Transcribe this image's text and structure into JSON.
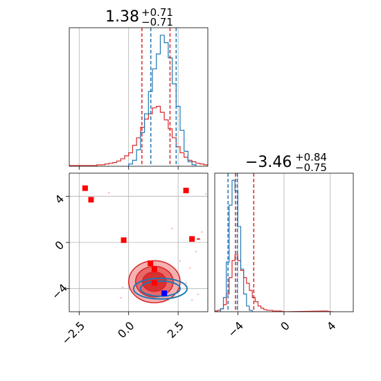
{
  "chart_data": [
    {
      "type": "histogram",
      "panel": "top-left",
      "title": {
        "value": "1.38",
        "sup": "+0.71",
        "sub": "−0.71"
      },
      "xlim": [
        -3.0,
        4.0
      ],
      "grid": true,
      "series": [
        {
          "name": "",
          "color": "#d62728",
          "bins": [
            [
              -3.0,
              1
            ],
            [
              -2.8,
              1
            ],
            [
              -2.6,
              1
            ],
            [
              -2.4,
              1
            ],
            [
              -2.2,
              1
            ],
            [
              -2.0,
              1
            ],
            [
              -1.8,
              1
            ],
            [
              -1.6,
              2
            ],
            [
              -1.4,
              2
            ],
            [
              -1.2,
              3
            ],
            [
              -1.0,
              4
            ],
            [
              -0.8,
              5
            ],
            [
              -0.6,
              7
            ],
            [
              -0.4,
              10
            ],
            [
              -0.2,
              14
            ],
            [
              0.0,
              18
            ],
            [
              0.2,
              28
            ],
            [
              0.4,
              38
            ],
            [
              0.6,
              52
            ],
            [
              0.8,
              63
            ],
            [
              1.0,
              70
            ],
            [
              1.2,
              78
            ],
            [
              1.4,
              80
            ],
            [
              1.6,
              72
            ],
            [
              1.8,
              62
            ],
            [
              2.0,
              50
            ],
            [
              2.2,
              38
            ],
            [
              2.4,
              26
            ],
            [
              2.6,
              18
            ],
            [
              2.8,
              12
            ],
            [
              3.0,
              8
            ],
            [
              3.2,
              6
            ],
            [
              3.4,
              4
            ],
            [
              3.6,
              3
            ],
            [
              3.8,
              2
            ]
          ]
        },
        {
          "name": "",
          "color": "#1f77b4",
          "bins": [
            [
              0.0,
              3
            ],
            [
              0.2,
              8
            ],
            [
              0.4,
              22
            ],
            [
              0.6,
              45
            ],
            [
              0.8,
              70
            ],
            [
              1.0,
              100
            ],
            [
              1.2,
              130
            ],
            [
              1.4,
              150
            ],
            [
              1.6,
              175
            ],
            [
              1.8,
              165
            ],
            [
              2.0,
              145
            ],
            [
              2.2,
              110
            ],
            [
              2.4,
              80
            ],
            [
              2.6,
              48
            ],
            [
              2.8,
              20
            ],
            [
              3.0,
              6
            ],
            [
              3.2,
              2
            ]
          ]
        }
      ],
      "ylim": [
        0,
        185
      ],
      "quantiles": [
        {
          "color": "#d62728",
          "values": [
            0.67,
            2.09
          ]
        },
        {
          "color": "#1f77b4",
          "values": [
            1.12,
            2.4
          ]
        }
      ],
      "xticks": [
        -2.5,
        0.0,
        2.5
      ]
    },
    {
      "type": "contour-scatter",
      "panel": "bottom-left",
      "xlim": [
        -3.0,
        4.0
      ],
      "ylim": [
        -6.0,
        6.0
      ],
      "xticks": [
        -2.5,
        0.0,
        2.5
      ],
      "yticks": [
        -4,
        0,
        4
      ],
      "xtick_labels": [
        "−2.5",
        "0.0",
        "2.5"
      ],
      "ytick_labels": [
        "−4",
        "0",
        "4"
      ],
      "grid": true,
      "red_points": [
        [
          -2.2,
          4.7
        ],
        [
          -1.9,
          3.7
        ],
        [
          -0.25,
          0.2
        ],
        [
          2.9,
          4.5
        ],
        [
          3.2,
          0.3
        ],
        [
          1.1,
          -1.8
        ],
        [
          1.3,
          -2.3
        ],
        [
          1.3,
          -3.5
        ]
      ],
      "blue_points": [
        [
          1.8,
          -4.4
        ]
      ],
      "red_contours": {
        "color": "#d62728",
        "center": [
          1.3,
          -3.4
        ],
        "levels": [
          [
            1.3,
            0.65
          ],
          [
            0.95,
            0.48
          ],
          [
            0.6,
            0.32
          ]
        ]
      },
      "blue_contours": {
        "color": "#1f77b4",
        "center": [
          1.6,
          -4.0
        ],
        "levels": [
          [
            1.35,
            0.3
          ],
          [
            1.0,
            0.22
          ]
        ]
      }
    },
    {
      "type": "histogram",
      "panel": "bottom-right",
      "title": {
        "value": "−3.46",
        "sup": "+0.84",
        "sub": "−0.75"
      },
      "xlim": [
        -6.0,
        6.0
      ],
      "xticks": [
        -4,
        0,
        4
      ],
      "xtick_labels": [
        "−4",
        "0",
        "4"
      ],
      "grid": true,
      "series": [
        {
          "name": "",
          "color": "#d62728",
          "bins": [
            [
              -6.0,
              1
            ],
            [
              -5.75,
              2
            ],
            [
              -5.5,
              4
            ],
            [
              -5.25,
              10
            ],
            [
              -5.0,
              25
            ],
            [
              -4.75,
              48
            ],
            [
              -4.5,
              72
            ],
            [
              -4.25,
              80
            ],
            [
              -4.0,
              72
            ],
            [
              -3.75,
              58
            ],
            [
              -3.5,
              48
            ],
            [
              -3.25,
              40
            ],
            [
              -3.0,
              30
            ],
            [
              -2.75,
              20
            ],
            [
              -2.5,
              14
            ],
            [
              -2.25,
              8
            ],
            [
              -2.0,
              5
            ],
            [
              -1.75,
              3
            ],
            [
              -1.5,
              2
            ],
            [
              -1.25,
              2
            ],
            [
              -1.0,
              1
            ],
            [
              -0.75,
              1
            ],
            [
              -0.5,
              1
            ],
            [
              0.0,
              0
            ],
            [
              3.5,
              1
            ],
            [
              4.0,
              0
            ]
          ]
        },
        {
          "name": "",
          "color": "#1f77b4",
          "bins": [
            [
              -5.5,
              4
            ],
            [
              -5.25,
              20
            ],
            [
              -5.0,
              70
            ],
            [
              -4.75,
              150
            ],
            [
              -4.5,
              185
            ],
            [
              -4.25,
              170
            ],
            [
              -4.0,
              120
            ],
            [
              -3.75,
              60
            ],
            [
              -3.5,
              25
            ],
            [
              -3.25,
              8
            ],
            [
              -3.0,
              2
            ]
          ]
        }
      ],
      "ylim": [
        0,
        195
      ],
      "quantiles": [
        {
          "color": "#d62728",
          "values": [
            -4.21,
            -2.62
          ]
        },
        {
          "color": "#1f77b4",
          "values": [
            -4.85,
            -4.05
          ]
        }
      ]
    }
  ]
}
